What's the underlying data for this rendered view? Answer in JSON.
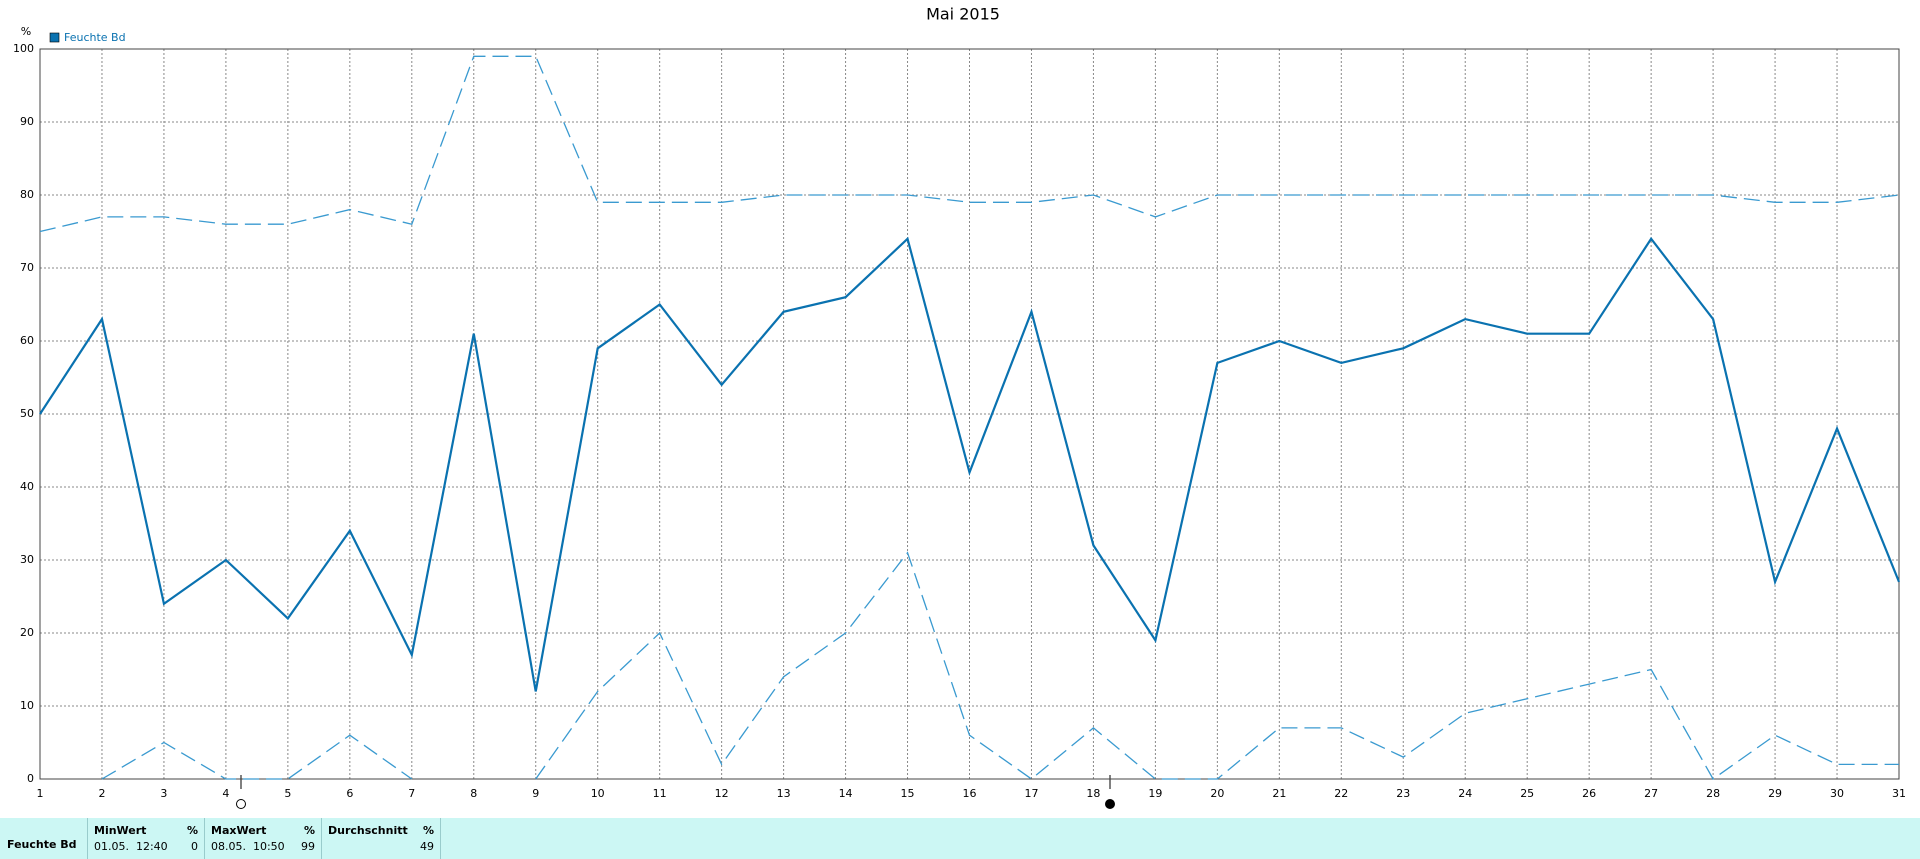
{
  "chart_data": {
    "type": "line",
    "title": "Mai 2015",
    "y_unit": "%",
    "x": [
      1,
      2,
      3,
      4,
      5,
      6,
      7,
      8,
      9,
      10,
      11,
      12,
      13,
      14,
      15,
      16,
      17,
      18,
      19,
      20,
      21,
      22,
      23,
      24,
      25,
      26,
      27,
      28,
      29,
      30,
      31
    ],
    "xlim": [
      1,
      31
    ],
    "xticks": [
      1,
      2,
      3,
      4,
      5,
      6,
      7,
      8,
      9,
      10,
      11,
      12,
      13,
      14,
      15,
      16,
      17,
      18,
      19,
      20,
      21,
      22,
      23,
      24,
      25,
      26,
      27,
      28,
      29,
      30,
      31
    ],
    "ylim": [
      0,
      100
    ],
    "yticks": [
      0,
      10,
      20,
      30,
      40,
      50,
      60,
      70,
      80,
      90,
      100
    ],
    "grid": true,
    "legend": "top-left",
    "series": [
      {
        "name": "Feuchte Bd",
        "color": "#0a72b0",
        "style": "solid",
        "values": [
          50,
          63,
          24,
          30,
          22,
          34,
          17,
          61,
          12,
          59,
          65,
          54,
          64,
          66,
          74,
          42,
          64,
          32,
          19,
          57,
          60,
          57,
          59,
          63,
          61,
          61,
          74,
          63,
          27,
          48,
          27
        ]
      },
      {
        "color": "#3a9ad0",
        "style": "dashed",
        "values": [
          75,
          77,
          77,
          76,
          76,
          78,
          76,
          99,
          99,
          79,
          79,
          79,
          80,
          80,
          80,
          79,
          79,
          80,
          77,
          80,
          80,
          80,
          80,
          80,
          80,
          80,
          80,
          80,
          79,
          79,
          80
        ]
      },
      {
        "color": "#3a9ad0",
        "style": "dashed",
        "values": [
          null,
          0,
          5,
          0,
          0,
          6,
          0,
          null,
          0,
          12,
          20,
          2,
          14,
          20,
          31,
          6,
          0,
          7,
          0,
          0,
          7,
          7,
          3,
          9,
          11,
          13,
          15,
          0,
          6,
          2,
          2
        ]
      }
    ]
  },
  "table": {
    "row_label": "Feuchte Bd",
    "columns": [
      {
        "header": "MinWert",
        "unit": "%",
        "time": "01.05.  12:40",
        "value": 0
      },
      {
        "header": "MaxWert",
        "unit": "%",
        "time": "08.05.  10:50",
        "value": 99
      },
      {
        "header": "Durchschnitt",
        "unit": "%",
        "value": 49
      }
    ]
  }
}
